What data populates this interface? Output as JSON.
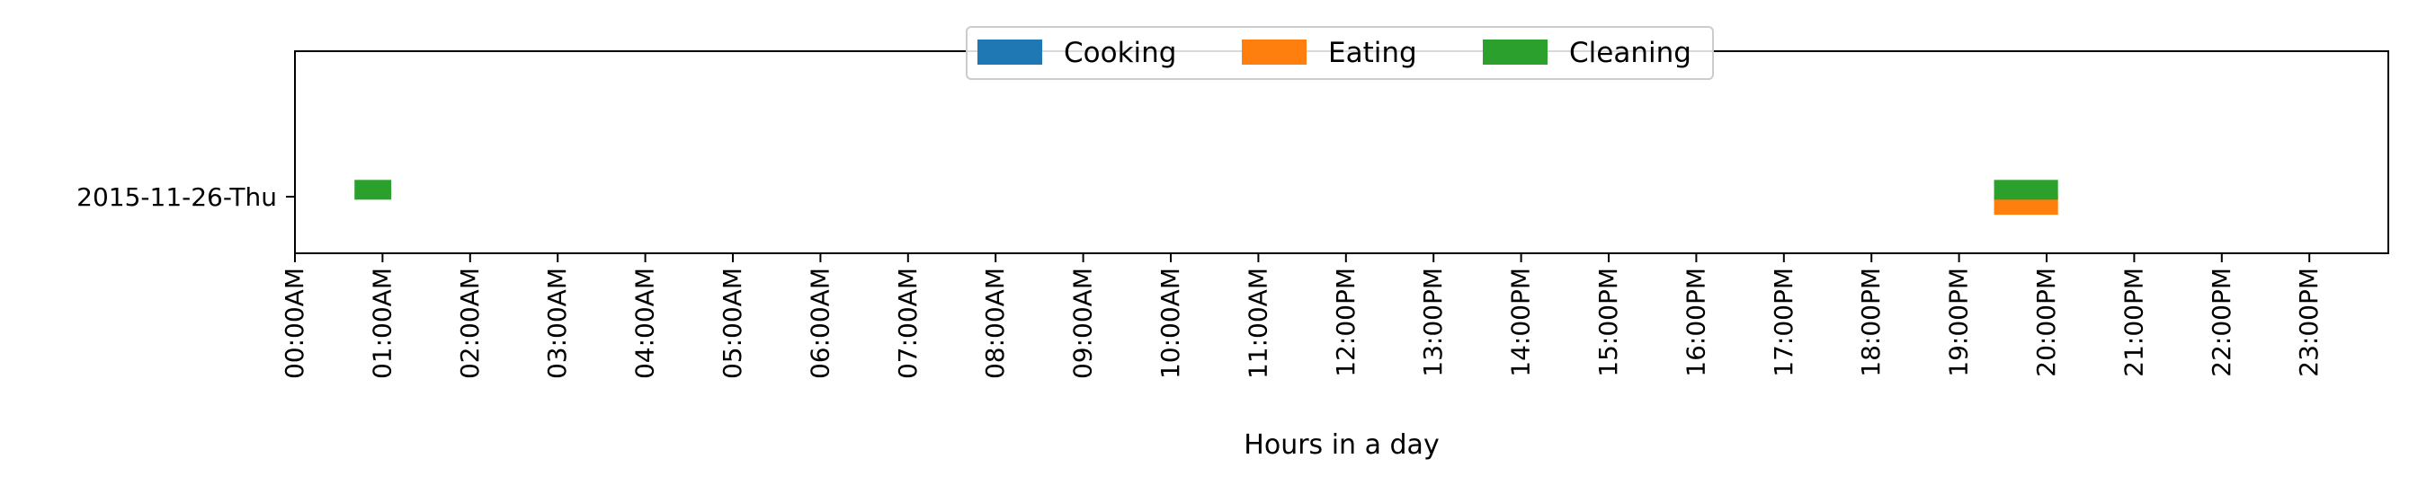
{
  "chart_data": {
    "type": "bar",
    "orientation": "horizontal-timeline",
    "xlabel": "Hours in a day",
    "ylabel": "",
    "xlim": [
      0,
      24
    ],
    "x_ticks": [
      "00:00AM",
      "01:00AM",
      "02:00AM",
      "03:00AM",
      "04:00AM",
      "05:00AM",
      "06:00AM",
      "07:00AM",
      "08:00AM",
      "09:00AM",
      "10:00AM",
      "11:00AM",
      "12:00PM",
      "13:00PM",
      "14:00PM",
      "15:00PM",
      "16:00PM",
      "17:00PM",
      "18:00PM",
      "19:00PM",
      "20:00PM",
      "21:00PM",
      "22:00PM",
      "23:00PM"
    ],
    "categories": [
      "2015-11-26-Thu"
    ],
    "legend_position": "top-center",
    "grid": false,
    "series": [
      {
        "name": "Cooking",
        "color": "#1f77b4",
        "intervals": []
      },
      {
        "name": "Eating",
        "color": "#ff7f0e",
        "intervals": [
          {
            "category": "2015-11-26-Thu",
            "start": 19.4,
            "end": 20.13
          }
        ]
      },
      {
        "name": "Cleaning",
        "color": "#2ca02c",
        "intervals": [
          {
            "category": "2015-11-26-Thu",
            "start": 0.68,
            "end": 1.1
          },
          {
            "category": "2015-11-26-Thu",
            "start": 19.4,
            "end": 20.13
          }
        ]
      }
    ]
  }
}
